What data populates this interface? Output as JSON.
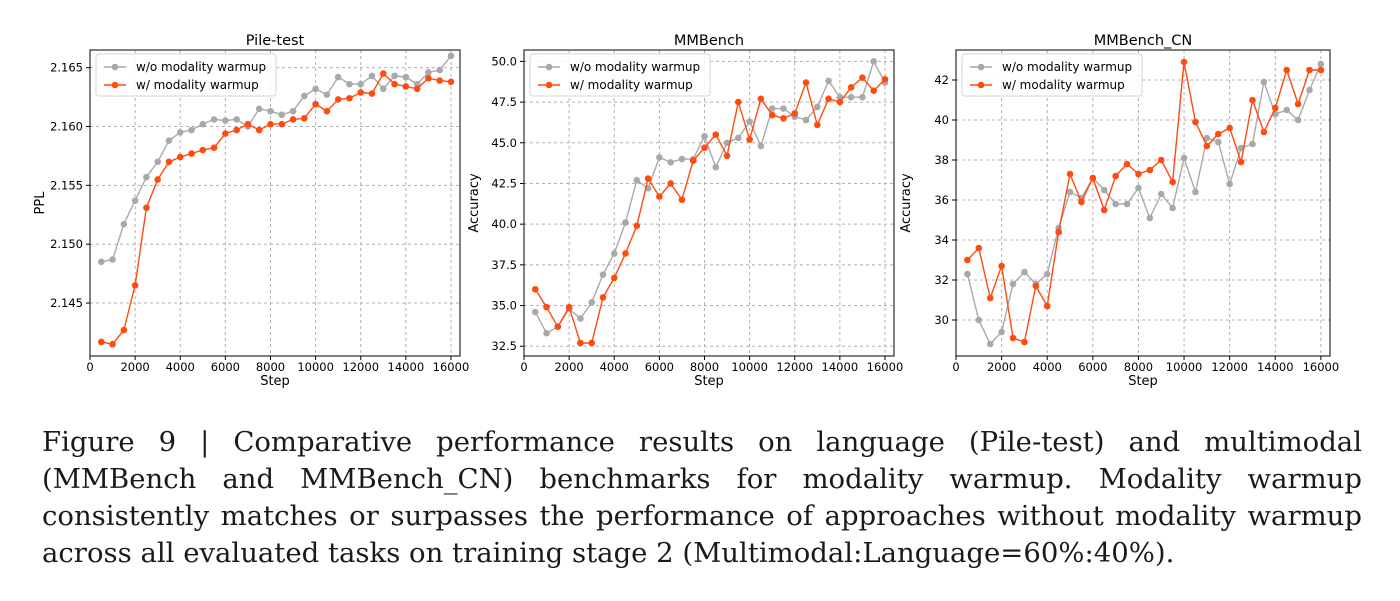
{
  "figure": {
    "caption": "Figure 9 | Comparative performance results on language (Pile-test) and multimodal (MMBench and MMBench_CN) benchmarks for modality warmup. Modality warmup consistently matches or surpasses the performance of approaches without modality warmup across all evaluated tasks on training stage 2 (Multimodal:Language=60%:40%)."
  },
  "colors": {
    "without": "#a9a9a9",
    "with": "#ff4b0f",
    "grid": "#b0b0b0"
  },
  "chart_data": [
    {
      "type": "line",
      "title": "Pile-test",
      "xlabel": "Step",
      "ylabel": "PPL",
      "grid": true,
      "legend": "top-left",
      "xlim": [
        0,
        16400
      ],
      "ylim": [
        2.1405,
        2.1665
      ],
      "xticks": [
        0,
        2000,
        4000,
        6000,
        8000,
        10000,
        12000,
        14000,
        16000
      ],
      "yticks": [
        2.145,
        2.15,
        2.155,
        2.16,
        2.165
      ],
      "ytick_labels": [
        "2.145",
        "2.150",
        "2.155",
        "2.160",
        "2.165"
      ],
      "x": [
        500,
        1000,
        1500,
        2000,
        2500,
        3000,
        3500,
        4000,
        4500,
        5000,
        5500,
        6000,
        6500,
        7000,
        7500,
        8000,
        8500,
        9000,
        9500,
        10000,
        10500,
        11000,
        11500,
        12000,
        12500,
        13000,
        13500,
        14000,
        14500,
        15000,
        15500,
        16000
      ],
      "series": [
        {
          "name": "w/o modality warmup",
          "values": [
            2.1485,
            2.1487,
            2.1517,
            2.1537,
            2.1557,
            2.157,
            2.1588,
            2.1595,
            2.1597,
            2.1602,
            2.1606,
            2.1605,
            2.1606,
            2.16,
            2.1615,
            2.1613,
            2.161,
            2.1613,
            2.1626,
            2.1632,
            2.1627,
            2.1642,
            2.1636,
            2.1636,
            2.1643,
            2.1632,
            2.1643,
            2.1642,
            2.1636,
            2.1646,
            2.1648,
            2.166
          ]
        },
        {
          "name": "w/ modality warmup",
          "values": [
            2.1417,
            2.1415,
            2.1427,
            2.1465,
            2.1531,
            2.1555,
            2.157,
            2.1574,
            2.1577,
            2.158,
            2.1582,
            2.1594,
            2.1597,
            2.1602,
            2.1597,
            2.1602,
            2.1602,
            2.1606,
            2.1607,
            2.1619,
            2.1613,
            2.1623,
            2.1624,
            2.1629,
            2.1628,
            2.1645,
            2.1636,
            2.1634,
            2.1632,
            2.1641,
            2.1639,
            2.1638
          ]
        }
      ]
    },
    {
      "type": "line",
      "title": "MMBench",
      "xlabel": "Step",
      "ylabel": "Accuracy",
      "grid": true,
      "legend": "top-left",
      "xlim": [
        0,
        16400
      ],
      "ylim": [
        31.9,
        50.7
      ],
      "xticks": [
        0,
        2000,
        4000,
        6000,
        8000,
        10000,
        12000,
        14000,
        16000
      ],
      "yticks": [
        32.5,
        35.0,
        37.5,
        40.0,
        42.5,
        45.0,
        47.5,
        50.0
      ],
      "ytick_labels": [
        "32.5",
        "35.0",
        "37.5",
        "40.0",
        "42.5",
        "45.0",
        "47.5",
        "50.0"
      ],
      "x": [
        500,
        1000,
        1500,
        2000,
        2500,
        3000,
        3500,
        4000,
        4500,
        5000,
        5500,
        6000,
        6500,
        7000,
        7500,
        8000,
        8500,
        9000,
        9500,
        10000,
        10500,
        11000,
        11500,
        12000,
        12500,
        13000,
        13500,
        14000,
        14500,
        15000,
        15500,
        16000
      ],
      "series": [
        {
          "name": "w/o modality warmup",
          "values": [
            34.6,
            33.3,
            33.7,
            34.8,
            34.2,
            35.2,
            36.9,
            38.2,
            40.1,
            42.7,
            42.2,
            44.1,
            43.8,
            44.0,
            44.0,
            45.4,
            43.5,
            45.0,
            45.3,
            46.3,
            44.8,
            47.1,
            47.1,
            46.6,
            46.4,
            47.2,
            48.8,
            47.8,
            47.8,
            47.8,
            50.0,
            48.7
          ]
        },
        {
          "name": "w/ modality warmup",
          "values": [
            36.0,
            34.9,
            33.7,
            34.9,
            32.7,
            32.7,
            35.5,
            36.7,
            38.2,
            39.9,
            42.8,
            41.7,
            42.5,
            41.5,
            43.9,
            44.7,
            45.5,
            44.2,
            47.5,
            45.2,
            47.7,
            46.7,
            46.5,
            46.8,
            48.7,
            46.1,
            47.7,
            47.5,
            48.4,
            49.0,
            48.2,
            48.9
          ]
        }
      ]
    },
    {
      "type": "line",
      "title": "MMBench_CN",
      "xlabel": "Step",
      "ylabel": "Accuracy",
      "grid": true,
      "legend": "top-left",
      "xlim": [
        0,
        16400
      ],
      "ylim": [
        28.2,
        43.5
      ],
      "xticks": [
        0,
        2000,
        4000,
        6000,
        8000,
        10000,
        12000,
        14000,
        16000
      ],
      "yticks": [
        30,
        32,
        34,
        36,
        38,
        40,
        42
      ],
      "ytick_labels": [
        "30",
        "32",
        "34",
        "36",
        "38",
        "40",
        "42"
      ],
      "x": [
        500,
        1000,
        1500,
        2000,
        2500,
        3000,
        3500,
        4000,
        4500,
        5000,
        5500,
        6000,
        6500,
        7000,
        7500,
        8000,
        8500,
        9000,
        9500,
        10000,
        10500,
        11000,
        11500,
        12000,
        12500,
        13000,
        13500,
        14000,
        14500,
        15000,
        15500,
        16000
      ],
      "series": [
        {
          "name": "w/o modality warmup",
          "values": [
            32.3,
            30.0,
            28.8,
            29.4,
            31.8,
            32.4,
            31.8,
            32.3,
            34.6,
            36.4,
            36.1,
            37.1,
            36.5,
            35.8,
            35.8,
            36.6,
            35.1,
            36.3,
            35.6,
            38.1,
            36.4,
            39.1,
            38.9,
            36.8,
            38.6,
            38.8,
            41.9,
            40.3,
            40.5,
            40.0,
            41.5,
            42.8
          ]
        },
        {
          "name": "w/ modality warmup",
          "values": [
            33.0,
            33.6,
            31.1,
            32.7,
            29.1,
            28.9,
            31.7,
            30.7,
            34.4,
            37.3,
            35.9,
            37.1,
            35.5,
            37.2,
            37.8,
            37.3,
            37.5,
            38.0,
            36.9,
            42.9,
            39.9,
            38.7,
            39.3,
            39.6,
            37.9,
            41.0,
            39.4,
            40.6,
            42.5,
            40.8,
            42.5,
            42.5
          ]
        }
      ]
    }
  ]
}
